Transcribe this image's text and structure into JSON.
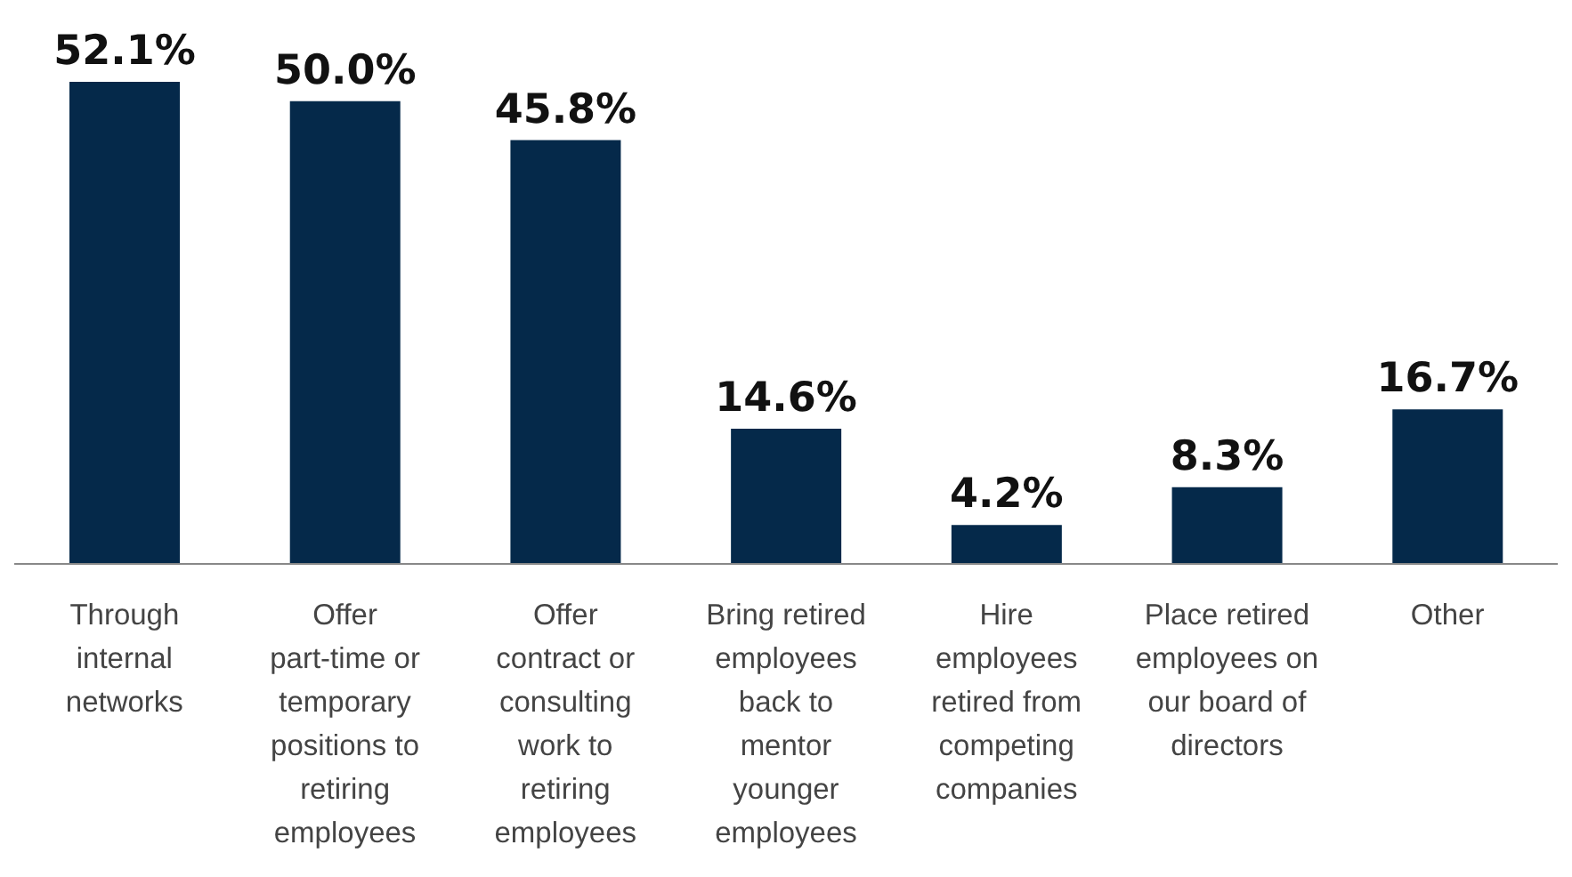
{
  "chart_data": {
    "type": "bar",
    "categories": [
      "Through internal networks",
      "Offer part-time or temporary positions to retiring employees",
      "Offer contract or consulting work to retiring employees",
      "Bring retired employees back to mentor younger employees",
      "Hire employees retired from competing companies",
      "Place retired employees on our board of directors",
      "Other"
    ],
    "values": [
      52.1,
      50.0,
      45.8,
      14.6,
      4.2,
      8.3,
      16.7
    ],
    "value_labels": [
      "52.1%",
      "50.0%",
      "45.8%",
      "14.6%",
      "4.2%",
      "8.3%",
      "16.7%"
    ],
    "color": "#05294a",
    "grid": false,
    "legend": false,
    "tick_labels": "x"
  }
}
